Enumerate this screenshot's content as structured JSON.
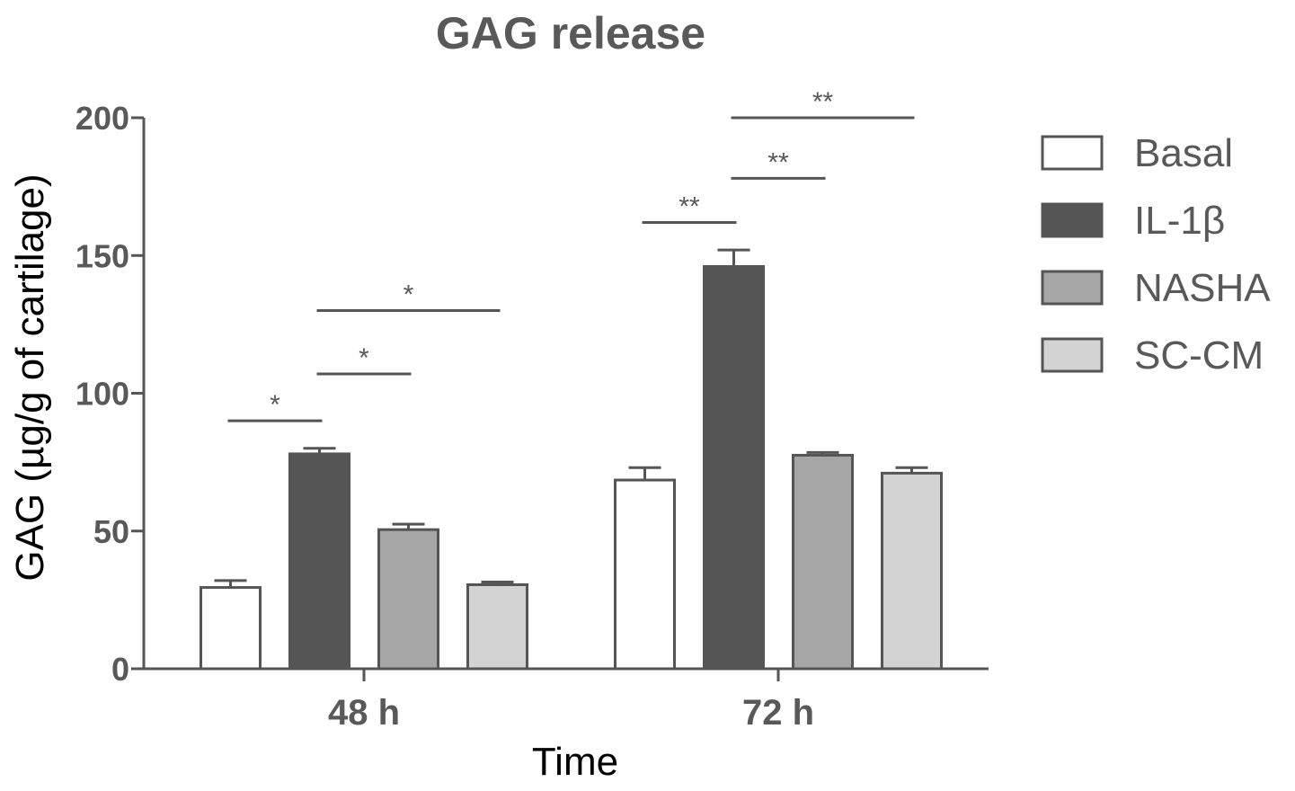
{
  "chart_data": {
    "type": "bar",
    "title": "GAG release",
    "xlabel": "Time",
    "ylabel": "GAG (µg/g of cartilage)",
    "ylim": [
      0,
      200
    ],
    "yticks": [
      0,
      50,
      100,
      150,
      200
    ],
    "categories": [
      "48 h",
      "72 h"
    ],
    "series": [
      {
        "name": "Basal",
        "values": [
          29.5,
          68.5
        ],
        "errors": [
          2.5,
          4.5
        ],
        "color": "#ffffff"
      },
      {
        "name": "IL-1β",
        "values": [
          78,
          146
        ],
        "errors": [
          2,
          6
        ],
        "color": "#555555"
      },
      {
        "name": "NASHA",
        "values": [
          50.5,
          77.5
        ],
        "errors": [
          2,
          1
        ],
        "color": "#a6a6a6"
      },
      {
        "name": "SC-CM",
        "values": [
          30.5,
          71
        ],
        "errors": [
          1,
          2
        ],
        "color": "#d3d3d3"
      }
    ],
    "significance": [
      {
        "category": "48 h",
        "from": "Basal",
        "to": "IL-1β",
        "label": "*",
        "y": 90
      },
      {
        "category": "48 h",
        "from": "IL-1β",
        "to": "NASHA",
        "label": "*",
        "y": 107
      },
      {
        "category": "48 h",
        "from": "IL-1β",
        "to": "SC-CM",
        "label": "*",
        "y": 130
      },
      {
        "category": "72 h",
        "from": "Basal",
        "to": "IL-1β",
        "label": "**",
        "y": 162
      },
      {
        "category": "72 h",
        "from": "IL-1β",
        "to": "NASHA",
        "label": "**",
        "y": 178
      },
      {
        "category": "72 h",
        "from": "IL-1β",
        "to": "SC-CM",
        "label": "**",
        "y": 200
      }
    ],
    "grid": false,
    "legend_position": "right",
    "axis_color": "#555555",
    "edge_color": "#555555"
  }
}
